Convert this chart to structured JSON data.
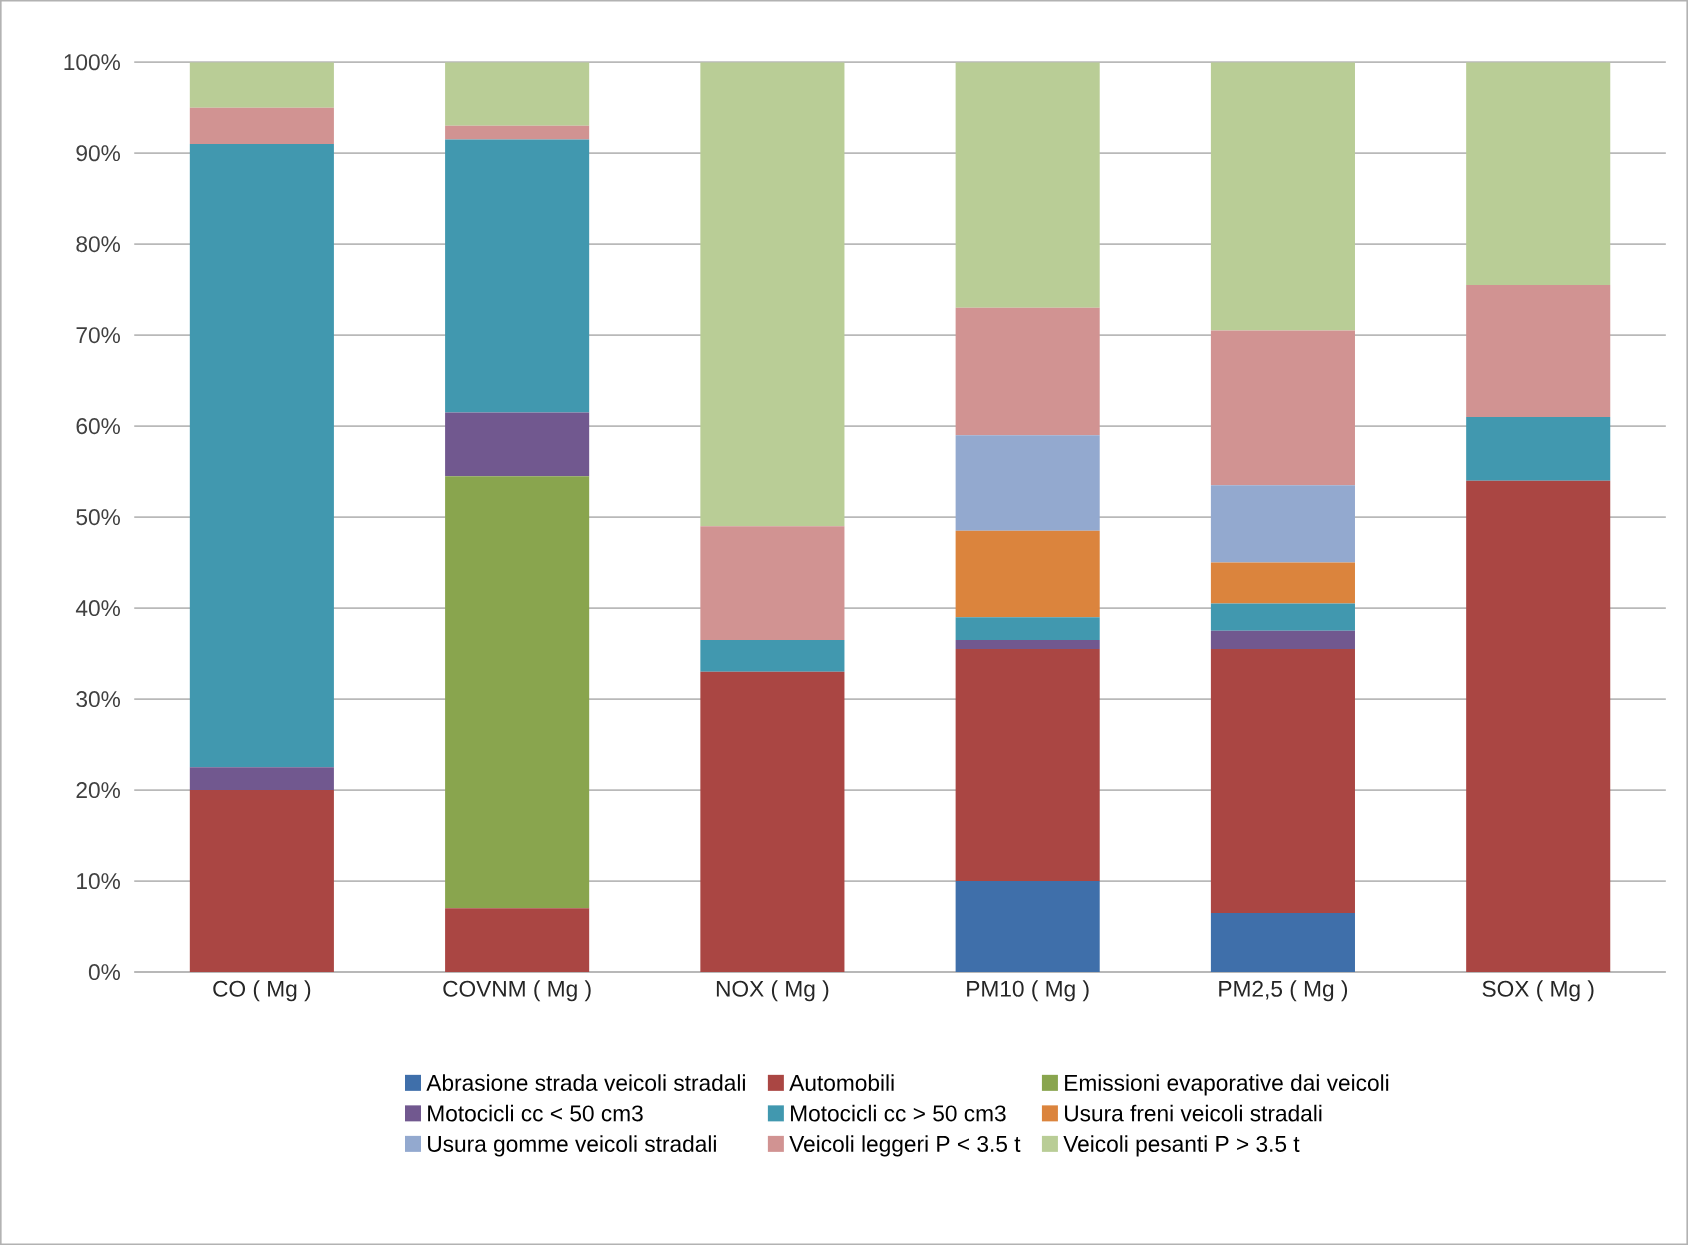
{
  "chart_data": {
    "type": "bar",
    "stacked": true,
    "categories": [
      "CO ( Mg )",
      "COVNM ( Mg )",
      "NOX ( Mg )",
      "PM10 ( Mg )",
      "PM2,5 ( Mg )",
      "SOX ( Mg )"
    ],
    "series": [
      {
        "name": "Abrasione strada veicoli stradali",
        "color": "#3f6faa",
        "values": [
          0,
          0,
          0,
          10,
          6.5,
          0
        ]
      },
      {
        "name": "Automobili",
        "color": "#aa4643",
        "values": [
          20,
          7,
          33,
          25.5,
          29,
          54
        ]
      },
      {
        "name": "Emissioni evaporative dai veicoli",
        "color": "#89a54e",
        "values": [
          0,
          47.5,
          0,
          0,
          0,
          0
        ]
      },
      {
        "name": "Motocicli cc < 50 cm3",
        "color": "#71588f",
        "values": [
          2.5,
          7,
          0,
          1,
          2,
          0
        ]
      },
      {
        "name": "Motocicli cc > 50 cm3",
        "color": "#4198af",
        "values": [
          68.5,
          30,
          3.5,
          2.5,
          3,
          7
        ]
      },
      {
        "name": "Usura freni veicoli stradali",
        "color": "#db843d",
        "values": [
          0,
          0,
          0,
          9.5,
          4.5,
          0
        ]
      },
      {
        "name": "Usura gomme veicoli stradali",
        "color": "#93a9cf",
        "values": [
          0,
          0,
          0,
          10.5,
          8.5,
          0
        ]
      },
      {
        "name": "Veicoli leggeri P < 3.5 t",
        "color": "#d19392",
        "values": [
          4,
          1.5,
          12.5,
          14,
          17,
          14.5
        ]
      },
      {
        "name": "Veicoli pesanti P > 3.5 t",
        "color": "#b9cd96",
        "values": [
          5,
          7,
          51,
          27,
          29.5,
          24.5
        ]
      }
    ],
    "ylim": [
      0,
      100
    ],
    "yticks": [
      {
        "value": 0,
        "label": "0%"
      },
      {
        "value": 10,
        "label": "10%"
      },
      {
        "value": 20,
        "label": "20%"
      },
      {
        "value": 30,
        "label": "30%"
      },
      {
        "value": 40,
        "label": "40%"
      },
      {
        "value": 50,
        "label": "50%"
      },
      {
        "value": 60,
        "label": "60%"
      },
      {
        "value": 70,
        "label": "70%"
      },
      {
        "value": 80,
        "label": "80%"
      },
      {
        "value": 90,
        "label": "90%"
      },
      {
        "value": 100,
        "label": "100%"
      }
    ],
    "grid": "y",
    "legend": "bottom"
  }
}
